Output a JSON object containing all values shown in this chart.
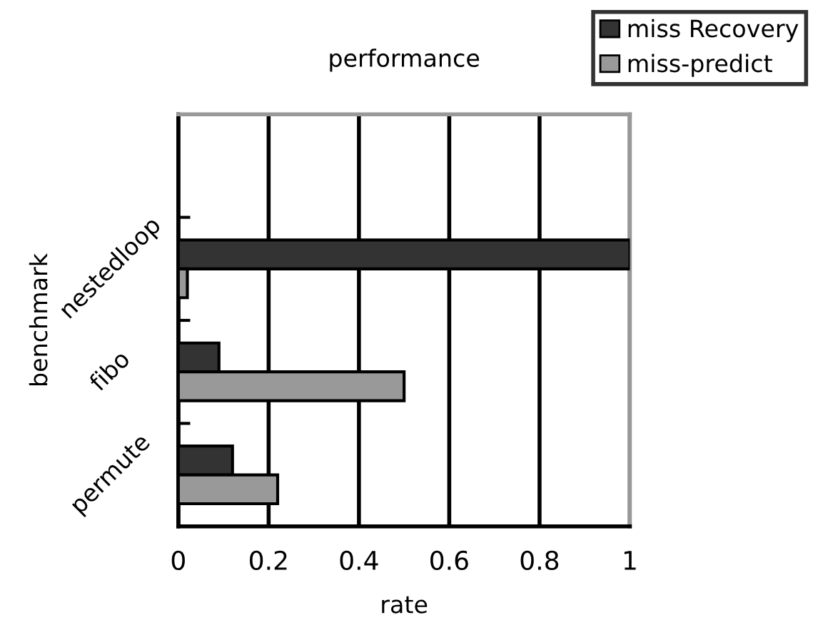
{
  "chart_data": {
    "type": "bar",
    "orientation": "horizontal",
    "title": "performance",
    "xlabel": "rate",
    "ylabel": "benchmark",
    "categories": [
      "nestedloop",
      "fibo",
      "permute"
    ],
    "series": [
      {
        "name": "miss Recovery",
        "color": "#333333",
        "values": [
          1.0,
          0.09,
          0.12
        ]
      },
      {
        "name": "miss-predict",
        "color": "#999999",
        "values": [
          0.02,
          0.5,
          0.22
        ]
      }
    ],
    "xlim": [
      0,
      1
    ],
    "xticks": [
      0,
      0.2,
      0.4,
      0.6,
      0.8,
      1
    ],
    "grid": "x",
    "legend": "top right"
  }
}
